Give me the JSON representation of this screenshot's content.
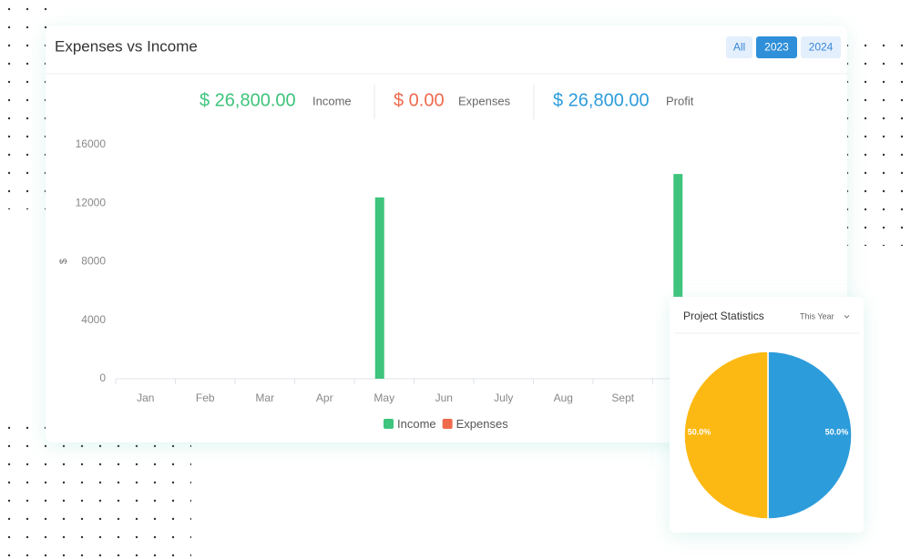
{
  "header": {
    "tabs": [
      "All",
      "2023",
      "2024"
    ]
  },
  "summary": [
    {
      "amount": "$ 26,800.00",
      "label": "Income"
    },
    {
      "amount": "$ 0.00",
      "label": "Expenses"
    },
    {
      "amount": "$ 26,800.00",
      "label": "Profit"
    }
  ],
  "pie_card": {
    "filter": "This Year"
  },
  "chart_data": [
    {
      "type": "bar",
      "title": "Expenses vs Income",
      "ylabel": "$",
      "categories": [
        "Jan",
        "Feb",
        "Mar",
        "Apr",
        "May",
        "Jun",
        "July",
        "Aug",
        "Sept",
        null,
        null,
        null
      ],
      "series": [
        {
          "name": "Income",
          "color": "#3ec47c",
          "values": [
            0,
            0,
            0,
            0,
            12400,
            0,
            0,
            0,
            0,
            14000,
            null,
            null
          ]
        },
        {
          "name": "Expenses",
          "color": "#ef6a4b",
          "values": [
            0,
            0,
            0,
            0,
            0,
            0,
            0,
            0,
            0,
            0,
            null,
            null
          ]
        }
      ],
      "ylim": [
        0,
        16000
      ],
      "yticks": [
        0,
        4000,
        8000,
        12000,
        16000
      ],
      "legend": "bottom"
    },
    {
      "type": "pie",
      "title": "Project Statistics",
      "values": [
        50,
        50
      ],
      "value_labels": [
        "50.0%",
        "50.0%"
      ],
      "colors": [
        "#2d9cdb",
        "#fdb913"
      ]
    }
  ]
}
